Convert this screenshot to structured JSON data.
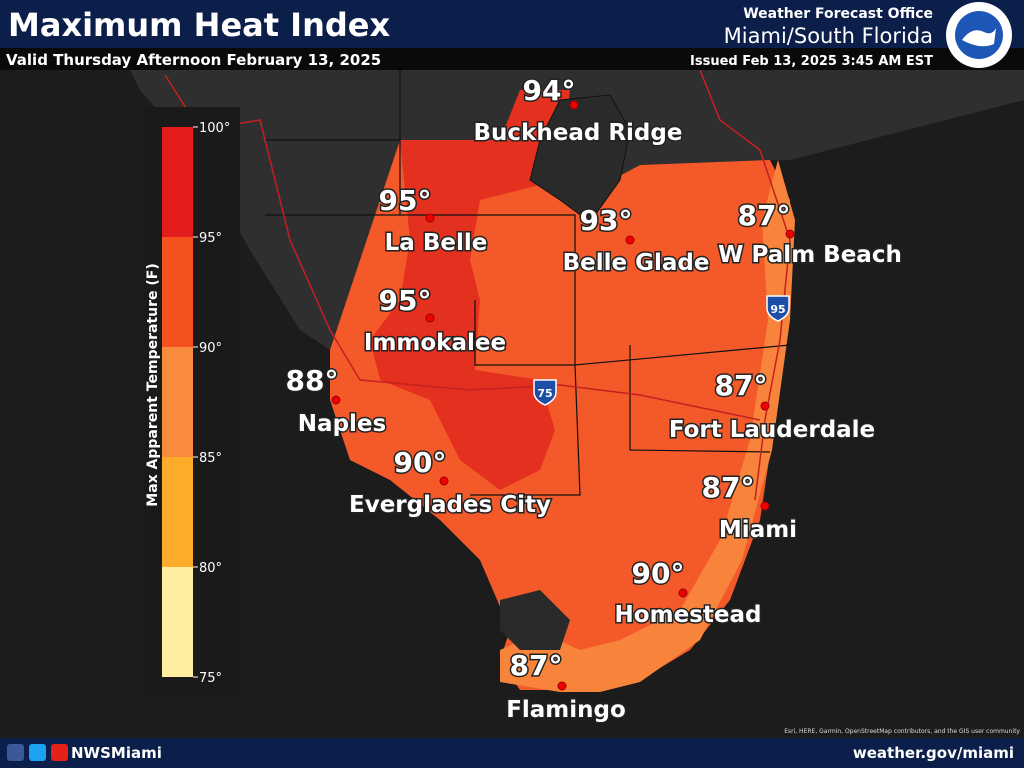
{
  "header": {
    "title": "Maximum Heat Index",
    "subtitle": "Valid Thursday Afternoon February 13, 2025",
    "office": "Weather Forecast Office",
    "region": "Miami/South Florida",
    "issued": "Issued Feb 13, 2025 3:45 AM EST"
  },
  "legend": {
    "title": "Max Apparent Temperature (F)",
    "ticks": [
      "100°",
      "95°",
      "90°",
      "85°",
      "80°",
      "75°"
    ]
  },
  "cities": [
    {
      "temp": "94°",
      "name": "Buckhead Ridge"
    },
    {
      "temp": "95°",
      "name": "La Belle"
    },
    {
      "temp": "93°",
      "name": "Belle Glade"
    },
    {
      "temp": "87°",
      "name": "W Palm Beach"
    },
    {
      "temp": "95°",
      "name": "Immokalee"
    },
    {
      "temp": "88°",
      "name": "Naples"
    },
    {
      "temp": "87°",
      "name": "Fort Lauderdale"
    },
    {
      "temp": "90°",
      "name": "Everglades City"
    },
    {
      "temp": "87°",
      "name": "Miami"
    },
    {
      "temp": "90°",
      "name": "Homestead"
    },
    {
      "temp": "87°",
      "name": "Flamingo"
    }
  ],
  "shields": [
    "75",
    "95"
  ],
  "footer": {
    "handle": "NWSMiami",
    "url": "weather.gov/miami",
    "attribution": "Esri, HERE, Garmin, OpenStreetMap contributors, and the GIS user community"
  }
}
